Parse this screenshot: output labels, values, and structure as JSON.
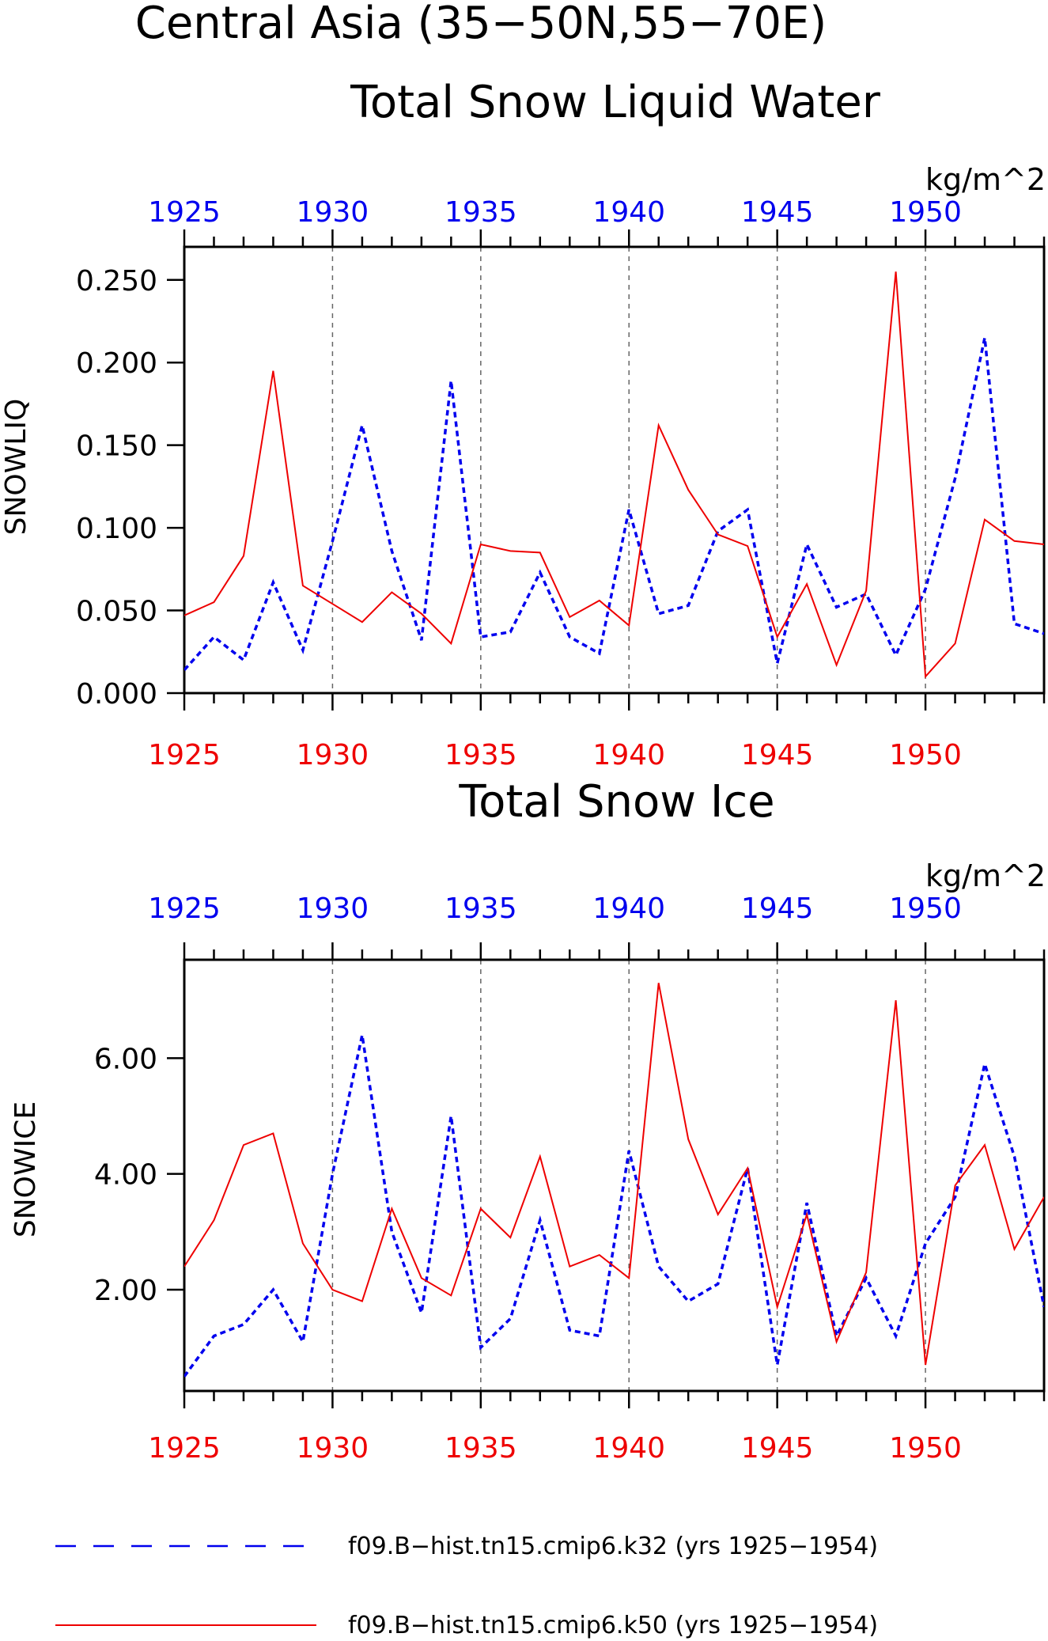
{
  "figure": {
    "title": "Central Asia (35−50N,55−70E)"
  },
  "colors": {
    "blue": "#0000ee",
    "red": "#ee0000",
    "frame": "#000000",
    "grid": "#666666"
  },
  "legend": {
    "entries": [
      {
        "label": "f09.B−hist.tn15.cmip6.k32 (yrs 1925−1954)",
        "color": "#0000ee",
        "style": "dashed"
      },
      {
        "label": "f09.B−hist.tn15.cmip6.k50 (yrs 1925−1954)",
        "color": "#ee0000",
        "style": "solid"
      }
    ]
  },
  "chart_data": [
    {
      "type": "line",
      "title": "Total Snow Liquid Water",
      "ylabel": "SNOWLIQ",
      "units": "kg/m^2",
      "xlim": [
        1925,
        1954
      ],
      "ylim": [
        0.0,
        0.27
      ],
      "xticks": [
        1925,
        1930,
        1935,
        1940,
        1945,
        1950
      ],
      "xtick_labels": [
        "1925",
        "1930",
        "1935",
        "1940",
        "1945",
        "1950"
      ],
      "yticks": [
        0.0,
        0.05,
        0.1,
        0.15,
        0.2,
        0.25
      ],
      "ytick_labels": [
        "0.000",
        "0.050",
        "0.100",
        "0.150",
        "0.200",
        "0.250"
      ],
      "grid": "vertical dashed at 1930, 1935, 1940, 1945, 1950",
      "x": [
        1925,
        1926,
        1927,
        1928,
        1929,
        1930,
        1931,
        1932,
        1933,
        1934,
        1935,
        1936,
        1937,
        1938,
        1939,
        1940,
        1941,
        1942,
        1943,
        1944,
        1945,
        1946,
        1947,
        1948,
        1949,
        1950,
        1951,
        1952,
        1953,
        1954
      ],
      "series": [
        {
          "name": "f09.B−hist.tn15.cmip6.k32 (yrs 1925−1954)",
          "color": "#0000ee",
          "style": "dashed",
          "values": [
            0.014,
            0.034,
            0.02,
            0.067,
            0.026,
            0.092,
            0.162,
            0.086,
            0.032,
            0.189,
            0.034,
            0.037,
            0.073,
            0.034,
            0.024,
            0.111,
            0.048,
            0.053,
            0.098,
            0.111,
            0.018,
            0.09,
            0.052,
            0.06,
            0.023,
            0.063,
            0.13,
            0.215,
            0.042,
            0.036
          ]
        },
        {
          "name": "f09.B−hist.tn15.cmip6.k50 (yrs 1925−1954)",
          "color": "#ee0000",
          "style": "solid",
          "values": [
            0.047,
            0.055,
            0.083,
            0.195,
            0.065,
            0.054,
            0.043,
            0.061,
            0.048,
            0.03,
            0.09,
            0.086,
            0.085,
            0.046,
            0.056,
            0.041,
            0.162,
            0.123,
            0.096,
            0.089,
            0.034,
            0.066,
            0.017,
            0.062,
            0.255,
            0.01,
            0.03,
            0.105,
            0.092,
            0.09
          ]
        }
      ]
    },
    {
      "type": "line",
      "title": "Total Snow Ice",
      "ylabel": "SNOWICE",
      "units": "kg/m^2",
      "xlim": [
        1925,
        1954
      ],
      "ylim": [
        0.25,
        7.7
      ],
      "xticks": [
        1925,
        1930,
        1935,
        1940,
        1945,
        1950
      ],
      "xtick_labels": [
        "1925",
        "1930",
        "1935",
        "1940",
        "1945",
        "1950"
      ],
      "yticks": [
        2.0,
        4.0,
        6.0
      ],
      "ytick_labels": [
        "2.00",
        "4.00",
        "6.00"
      ],
      "grid": "vertical dashed at 1930, 1935, 1940, 1945, 1950",
      "x": [
        1925,
        1926,
        1927,
        1928,
        1929,
        1930,
        1931,
        1932,
        1933,
        1934,
        1935,
        1936,
        1937,
        1938,
        1939,
        1940,
        1941,
        1942,
        1943,
        1944,
        1945,
        1946,
        1947,
        1948,
        1949,
        1950,
        1951,
        1952,
        1953,
        1954
      ],
      "series": [
        {
          "name": "f09.B−hist.tn15.cmip6.k32 (yrs 1925−1954)",
          "color": "#0000ee",
          "style": "dashed",
          "values": [
            0.5,
            1.2,
            1.4,
            2.0,
            1.1,
            4.0,
            6.4,
            3.0,
            1.6,
            5.0,
            1.0,
            1.5,
            3.2,
            1.3,
            1.2,
            4.4,
            2.4,
            1.8,
            2.1,
            4.1,
            0.7,
            3.5,
            1.2,
            2.2,
            1.2,
            2.8,
            3.6,
            5.9,
            4.3,
            1.7
          ]
        },
        {
          "name": "f09.B−hist.tn15.cmip6.k50 (yrs 1925−1954)",
          "color": "#ee0000",
          "style": "solid",
          "values": [
            2.4,
            3.2,
            4.5,
            4.7,
            2.8,
            2.0,
            1.8,
            3.4,
            2.2,
            1.9,
            3.4,
            2.9,
            4.3,
            2.4,
            2.6,
            2.2,
            7.3,
            4.6,
            3.3,
            4.1,
            1.7,
            3.3,
            1.1,
            2.3,
            7.0,
            0.7,
            3.8,
            4.5,
            2.7,
            3.6
          ]
        }
      ]
    }
  ]
}
